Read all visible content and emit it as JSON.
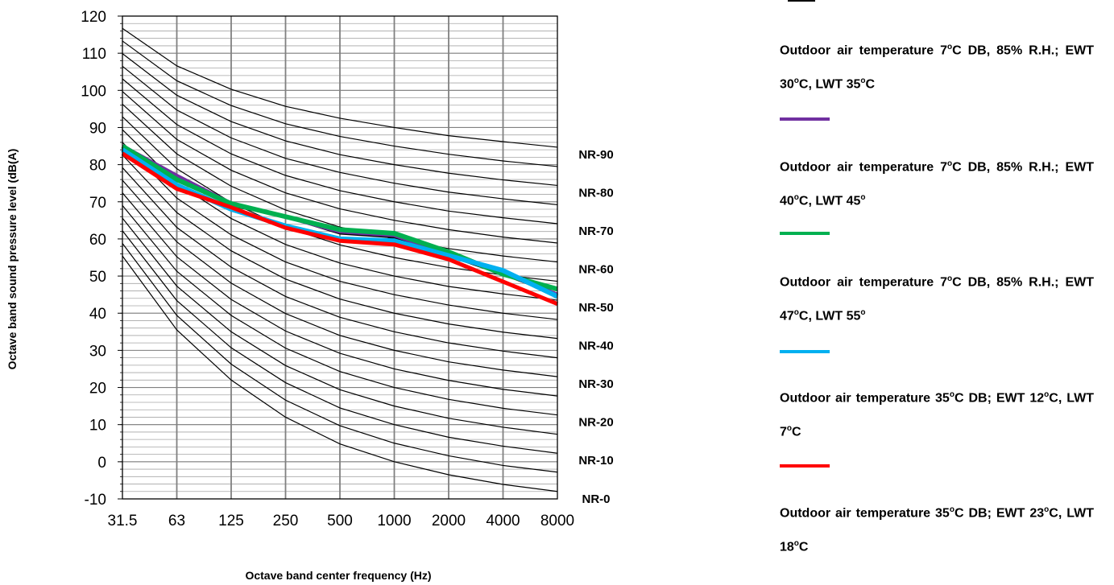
{
  "chart_data": {
    "type": "line",
    "title": "",
    "xlabel": "Octave band center frequency (Hz)",
    "ylabel": "Octave band sound pressure level (dB(A)",
    "x_scale": "log2 (octave bands)",
    "categories": [
      "31.5",
      "63",
      "125",
      "250",
      "500",
      "1000",
      "2000",
      "4000",
      "8000"
    ],
    "ylim": [
      -10,
      120
    ],
    "y_major_ticks": [
      "-10",
      "0",
      "10",
      "20",
      "30",
      "40",
      "50",
      "60",
      "70",
      "80",
      "90",
      "100",
      "110",
      "120"
    ],
    "y_minor_step": 2,
    "grid": true,
    "nr_curves": {
      "note": "Noise Rating curves NR-0 to NR-100 in steps of 5",
      "labels": [
        "NR-90",
        "NR-80",
        "NR-70",
        "NR-60",
        "NR-50",
        "NR-40",
        "NR-30",
        "NR-20",
        "NR-10",
        "NR-0"
      ],
      "series": [
        {
          "nr": 0,
          "values": [
            55.4,
            35.5,
            22.0,
            12.0,
            4.8,
            0,
            -3.5,
            -6.1,
            -8.0
          ]
        },
        {
          "nr": 5,
          "values": [
            58.8,
            39.4,
            26.3,
            16.6,
            9.7,
            5,
            1.6,
            -1.0,
            -2.8
          ]
        },
        {
          "nr": 10,
          "values": [
            62.2,
            43.4,
            30.7,
            21.3,
            14.5,
            10,
            6.6,
            4.2,
            2.3
          ]
        },
        {
          "nr": 15,
          "values": [
            65.6,
            47.3,
            35.0,
            25.9,
            19.4,
            15,
            11.7,
            9.3,
            7.4
          ]
        },
        {
          "nr": 20,
          "values": [
            69.0,
            51.3,
            39.4,
            30.6,
            24.3,
            20,
            16.8,
            14.4,
            12.6
          ]
        },
        {
          "nr": 25,
          "values": [
            72.4,
            55.2,
            43.7,
            35.2,
            29.2,
            25,
            21.9,
            19.5,
            17.7
          ]
        },
        {
          "nr": 30,
          "values": [
            75.8,
            59.2,
            48.1,
            39.9,
            34.0,
            30,
            26.9,
            24.7,
            22.9
          ]
        },
        {
          "nr": 35,
          "values": [
            79.2,
            63.1,
            52.4,
            44.5,
            38.9,
            35,
            32.0,
            29.8,
            28.0
          ]
        },
        {
          "nr": 40,
          "values": [
            82.6,
            67.1,
            56.8,
            49.2,
            43.8,
            40,
            37.1,
            34.9,
            33.2
          ]
        },
        {
          "nr": 45,
          "values": [
            86.0,
            71.0,
            61.1,
            53.8,
            48.6,
            45,
            42.2,
            40.0,
            38.3
          ]
        },
        {
          "nr": 50,
          "values": [
            89.4,
            75.0,
            65.5,
            58.5,
            53.5,
            50,
            47.2,
            45.2,
            43.5
          ]
        },
        {
          "nr": 55,
          "values": [
            92.9,
            78.9,
            69.8,
            63.1,
            58.4,
            55,
            52.3,
            50.3,
            48.6
          ]
        },
        {
          "nr": 60,
          "values": [
            96.3,
            82.9,
            74.2,
            67.8,
            63.2,
            60,
            57.4,
            55.4,
            53.8
          ]
        },
        {
          "nr": 65,
          "values": [
            99.7,
            86.8,
            78.5,
            72.4,
            68.1,
            65,
            62.5,
            60.5,
            58.9
          ]
        },
        {
          "nr": 70,
          "values": [
            103.1,
            90.8,
            82.9,
            77.1,
            73.0,
            70,
            67.5,
            65.7,
            64.1
          ]
        },
        {
          "nr": 75,
          "values": [
            106.5,
            94.7,
            87.2,
            81.7,
            77.9,
            75,
            72.6,
            70.8,
            69.2
          ]
        },
        {
          "nr": 80,
          "values": [
            109.9,
            98.7,
            91.6,
            86.4,
            82.7,
            80,
            77.7,
            75.9,
            74.4
          ]
        },
        {
          "nr": 85,
          "values": [
            113.3,
            102.6,
            95.9,
            91.0,
            87.6,
            85,
            82.8,
            81.0,
            79.5
          ]
        },
        {
          "nr": 90,
          "values": [
            116.7,
            106.6,
            100.3,
            95.7,
            92.5,
            90,
            87.8,
            86.2,
            84.7
          ]
        }
      ]
    },
    "series": [
      {
        "name": "Outdoor air temperature 7°C DB, 85% R.H.; EWT 30°C, LWT 35°C",
        "color": "#000000",
        "values": [
          85,
          76,
          69,
          66,
          61.5,
          60.5,
          55.5,
          50.5,
          45
        ]
      },
      {
        "name": "Outdoor air temperature 7°C DB, 85% R.H.; EWT 40°C, LWT 45°",
        "color": "#7030a0",
        "values": [
          85,
          77,
          69.5,
          66,
          62,
          61,
          56,
          51,
          45
        ]
      },
      {
        "name": "Outdoor air temperature 7°C DB, 85% R.H.; EWT 47°C, LWT 55°",
        "color": "#00b050",
        "values": [
          85,
          76,
          69.5,
          66,
          62.5,
          61.5,
          56.5,
          50.5,
          46.5
        ]
      },
      {
        "name": "Outdoor air temperature 35°C DB; EWT 12°C, LWT 7°C",
        "color": "#00b0f0",
        "values": [
          84,
          74.5,
          68,
          63.5,
          60,
          59.5,
          55.5,
          51.5,
          44.5
        ]
      },
      {
        "name": "Outdoor air temperature 35°C DB; EWT 23°C, LWT 18°C",
        "color": "#ff0000",
        "values": [
          83,
          73.5,
          68.5,
          63,
          59.5,
          58.5,
          54.5,
          48.5,
          42.5
        ]
      }
    ]
  },
  "legend": {
    "entries": [
      {
        "color": "#000000",
        "text_parts": [
          "Outdoor air temperature 7",
          "o",
          "C DB, 85% R.H.; EWT 30",
          "o",
          "C, LWT 35",
          "o",
          "C"
        ]
      },
      {
        "color": "#7030a0",
        "text_parts": [
          "Outdoor air temperature 7",
          "o",
          "C DB, 85% R.H.; EWT 40",
          "o",
          "C, LWT 45",
          "o",
          ""
        ]
      },
      {
        "color": "#00b050",
        "text_parts": [
          "Outdoor air temperature 7",
          "o",
          "C DB, 85% R.H.; EWT 47",
          "o",
          "C, LWT 55",
          "o",
          ""
        ]
      },
      {
        "color": "#00b0f0",
        "text_parts": [
          "Outdoor air temperature 35",
          "o",
          "C DB; EWT 12",
          "o",
          "C, LWT 7",
          "o",
          "C"
        ]
      },
      {
        "color": "#ff0000",
        "text_parts": [
          "Outdoor air temperature 35",
          "o",
          "C DB; EWT 23",
          "o",
          "C, LWT 18",
          "o",
          "C"
        ]
      }
    ]
  }
}
